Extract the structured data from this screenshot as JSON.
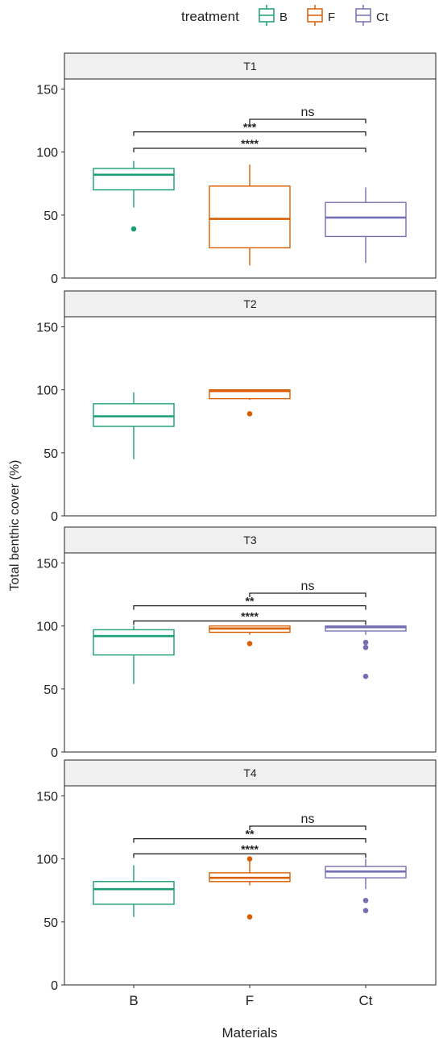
{
  "chart_data": {
    "type": "boxplot",
    "xlabel": "Materials",
    "ylabel": "Total benthic cover (%)",
    "ylim": [
      0,
      158
    ],
    "yticks": [
      0,
      50,
      100,
      150
    ],
    "categories": [
      "B",
      "F",
      "Ct"
    ],
    "legend": {
      "title": "treatment",
      "position": "top",
      "items": [
        {
          "label": "B",
          "color": "#1b9e77"
        },
        {
          "label": "F",
          "color": "#d95f02"
        },
        {
          "label": "Ct",
          "color": "#7570b3"
        }
      ]
    },
    "panels": [
      {
        "label": "T1",
        "boxes": [
          {
            "cat": "B",
            "lower": 56,
            "q1": 70,
            "median": 82,
            "q3": 87,
            "upper": 93,
            "outliers": [
              39
            ]
          },
          {
            "cat": "F",
            "lower": 10,
            "q1": 24,
            "median": 47,
            "q3": 73,
            "upper": 90,
            "outliers": []
          },
          {
            "cat": "Ct",
            "lower": 12,
            "q1": 33,
            "median": 48,
            "q3": 60,
            "upper": 72,
            "outliers": []
          }
        ],
        "brackets": [
          {
            "from": "F",
            "to": "Ct",
            "y": 126,
            "label": "ns"
          },
          {
            "from": "B",
            "to": "Ct",
            "y": 116,
            "label": "***"
          },
          {
            "from": "B",
            "to": "Ct",
            "y": 103,
            "label": "****"
          }
        ]
      },
      {
        "label": "T2",
        "boxes": [
          {
            "cat": "B",
            "lower": 45,
            "q1": 71,
            "median": 79,
            "q3": 89,
            "upper": 98,
            "outliers": []
          },
          {
            "cat": "F",
            "lower": 92,
            "q1": 93,
            "median": 99,
            "q3": 100,
            "upper": 100,
            "outliers": [
              81
            ]
          }
        ],
        "brackets": []
      },
      {
        "label": "T3",
        "boxes": [
          {
            "cat": "B",
            "lower": 54,
            "q1": 77,
            "median": 92,
            "q3": 97,
            "upper": 100,
            "outliers": []
          },
          {
            "cat": "F",
            "lower": 93,
            "q1": 95,
            "median": 98,
            "q3": 100,
            "upper": 100,
            "outliers": [
              86
            ]
          },
          {
            "cat": "Ct",
            "lower": 93,
            "q1": 96,
            "median": 99,
            "q3": 100,
            "upper": 100,
            "outliers": [
              87,
              83,
              60
            ]
          }
        ],
        "brackets": [
          {
            "from": "F",
            "to": "Ct",
            "y": 126,
            "label": "ns"
          },
          {
            "from": "B",
            "to": "Ct",
            "y": 116,
            "label": "**"
          },
          {
            "from": "B",
            "to": "Ct",
            "y": 104,
            "label": "****"
          }
        ]
      },
      {
        "label": "T4",
        "boxes": [
          {
            "cat": "B",
            "lower": 54,
            "q1": 64,
            "median": 76,
            "q3": 82,
            "upper": 95,
            "outliers": []
          },
          {
            "cat": "F",
            "lower": 79,
            "q1": 82,
            "median": 85,
            "q3": 89,
            "upper": 98,
            "outliers": [
              100,
              54
            ]
          },
          {
            "cat": "Ct",
            "lower": 76,
            "q1": 85,
            "median": 90,
            "q3": 94,
            "upper": 100,
            "outliers": [
              67,
              59
            ]
          }
        ],
        "brackets": [
          {
            "from": "F",
            "to": "Ct",
            "y": 126,
            "label": "ns"
          },
          {
            "from": "B",
            "to": "Ct",
            "y": 116,
            "label": "**"
          },
          {
            "from": "B",
            "to": "Ct",
            "y": 104,
            "label": "****"
          }
        ]
      }
    ]
  }
}
